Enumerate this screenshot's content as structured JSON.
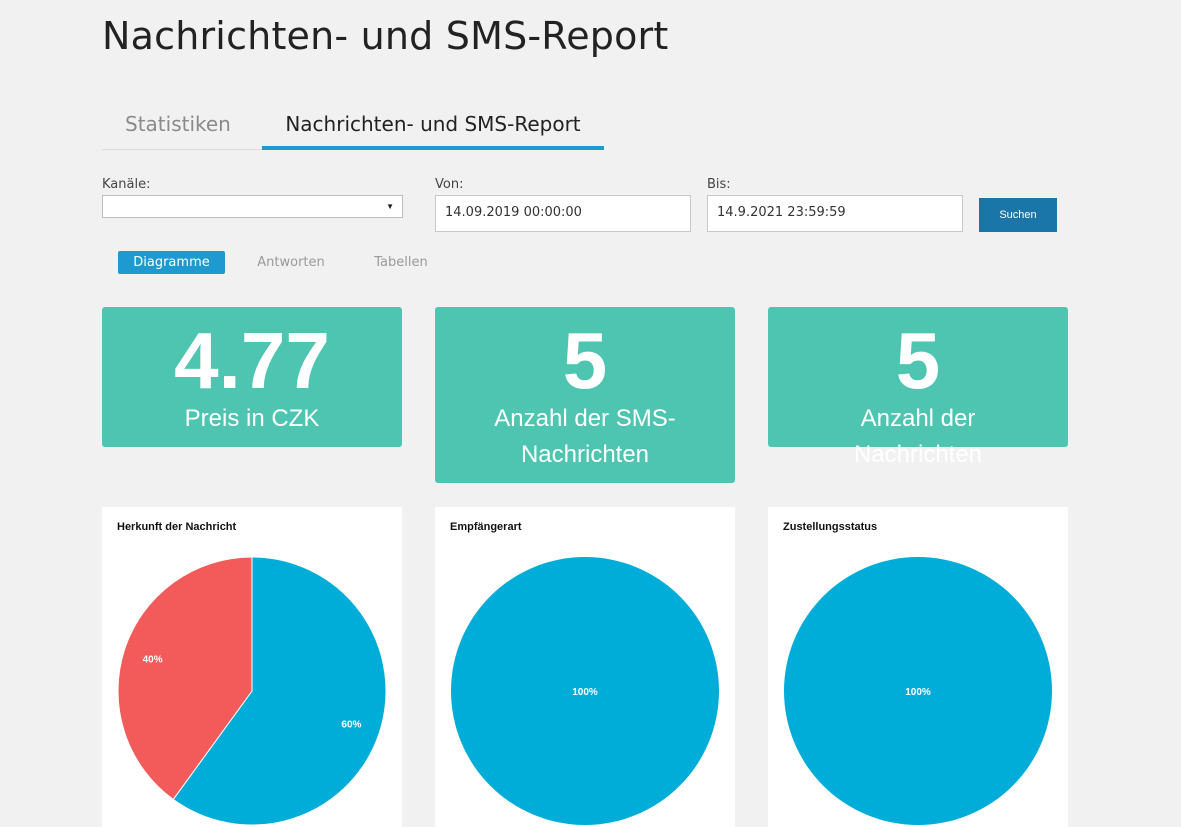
{
  "page": {
    "title": "Nachrichten- und SMS-Report"
  },
  "tabs": [
    {
      "label": "Statistiken",
      "active": false
    },
    {
      "label": "Nachrichten- und SMS-Report",
      "active": true
    }
  ],
  "filters": {
    "channels": {
      "label": "Kanäle:",
      "value": ""
    },
    "from": {
      "label": "Von:",
      "value": "14.09.2019 00:00:00"
    },
    "to": {
      "label": "Bis:",
      "value": "14.9.2021 23:59:59"
    },
    "search_label": "Suchen"
  },
  "subtabs": [
    {
      "label": "Diagramme",
      "active": true
    },
    {
      "label": "Antworten",
      "active": false
    },
    {
      "label": "Tabellen",
      "active": false
    }
  ],
  "kpis": [
    {
      "value": "4.77",
      "label": "Preis in CZK"
    },
    {
      "value": "5",
      "label": "Anzahl der SMS-Nachrichten"
    },
    {
      "value": "5",
      "label": "Anzahl der Nachrichten"
    }
  ],
  "colors": {
    "accent": "#1e9ad0",
    "kpi": "#4ec5b1",
    "pie_blue": "#00acd8",
    "pie_red": "#f35a5a"
  },
  "chart_data": [
    {
      "type": "pie",
      "title": "Herkunft der Nachricht",
      "slices": [
        {
          "value": 60,
          "label": "60%",
          "color": "#00acd8"
        },
        {
          "value": 40,
          "label": "40%",
          "color": "#f35a5a"
        }
      ]
    },
    {
      "type": "pie",
      "title": "Empfängerart",
      "slices": [
        {
          "value": 100,
          "label": "100%",
          "color": "#00acd8"
        }
      ]
    },
    {
      "type": "pie",
      "title": "Zustellungsstatus",
      "slices": [
        {
          "value": 100,
          "label": "100%",
          "color": "#00acd8"
        }
      ]
    }
  ]
}
